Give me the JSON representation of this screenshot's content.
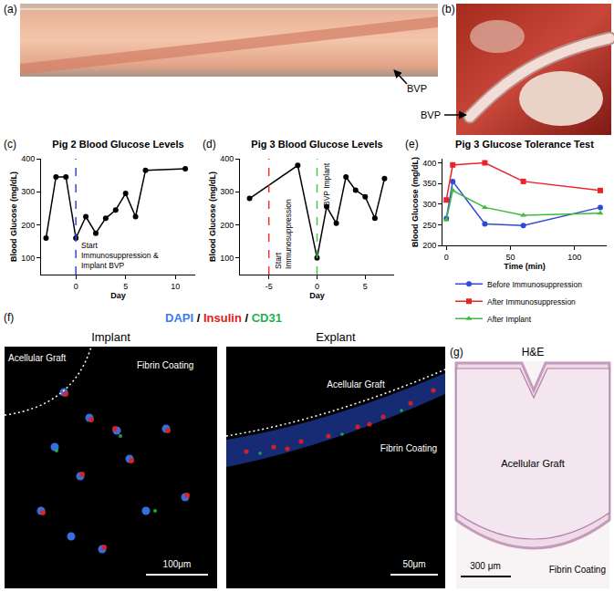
{
  "chart_data": [
    {
      "panel": "(c)",
      "type": "line",
      "title": "Pig 2 Blood Glucose Levels",
      "x_label": "Day",
      "y_label": "Blood Glucose (mg/dL)",
      "x": [
        -3,
        -2,
        -1,
        0,
        1,
        2,
        3,
        4,
        5,
        6,
        7,
        11
      ],
      "series": [
        {
          "color": "#000000",
          "marker": "circle",
          "line_style": "solid",
          "values": [
            160,
            345,
            345,
            160,
            225,
            175,
            220,
            245,
            295,
            225,
            365,
            370
          ]
        }
      ],
      "xlim": [
        -3.5,
        12
      ],
      "xticks": [
        0,
        5,
        10
      ],
      "ylim": [
        50,
        400
      ],
      "yticks": [
        100,
        200,
        300,
        400
      ],
      "grid": false,
      "vlines": [
        {
          "x": 0,
          "color": "#3344dd",
          "line_style": "dashed",
          "label_lines": [
            "Start",
            "Immunosuppression &",
            "Implant BVP"
          ]
        }
      ]
    },
    {
      "panel": "(d)",
      "type": "line",
      "title": "Pig 3 Blood Glucose Levels",
      "x_label": "Day",
      "y_label": "Blood Glucose (mg/dL)",
      "x": [
        -7,
        -2,
        0,
        1,
        2,
        3,
        4,
        5,
        6,
        7
      ],
      "series": [
        {
          "color": "#000000",
          "marker": "circle",
          "line_style": "solid",
          "values": [
            280,
            380,
            100,
            255,
            205,
            345,
            305,
            285,
            220,
            340
          ]
        }
      ],
      "xlim": [
        -8,
        8
      ],
      "xticks": [
        -5,
        0,
        5
      ],
      "ylim": [
        50,
        400
      ],
      "yticks": [
        100,
        200,
        300,
        400
      ],
      "grid": false,
      "vlines": [
        {
          "x": -5,
          "color": "#ee3333",
          "line_style": "dashed",
          "label_lines": [
            "Start",
            "Immunosuppression"
          ]
        },
        {
          "x": 0,
          "color": "#44cc44",
          "line_style": "dashed",
          "label_lines": [
            "BVP Implant"
          ]
        }
      ]
    },
    {
      "panel": "(e)",
      "type": "line",
      "title": "Pig 3 Glucose Tolerance Test",
      "x_label": "Time (min)",
      "y_label": "Blood Glucose (mg/dL)",
      "x": [
        0,
        5,
        30,
        60,
        120
      ],
      "series": [
        {
          "name": "Before Immunosuppression",
          "color": "#2e4bd8",
          "marker": "circle",
          "line_style": "solid",
          "values": [
            265,
            355,
            252,
            248,
            292
          ]
        },
        {
          "name": "After Immunosuppression",
          "color": "#e8242b",
          "marker": "square",
          "line_style": "solid",
          "values": [
            310,
            395,
            400,
            355,
            333
          ]
        },
        {
          "name": "After Implant",
          "color": "#3dbb3d",
          "marker": "triangle",
          "line_style": "solid",
          "values": [
            262,
            333,
            292,
            273,
            278
          ]
        }
      ],
      "xlim": [
        -3,
        125
      ],
      "xticks": [
        0,
        50,
        100
      ],
      "ylim": [
        200,
        410
      ],
      "yticks": [
        200,
        250,
        300,
        350,
        400
      ],
      "grid": false,
      "legend": "bottom"
    }
  ],
  "image_panels": {
    "a": {
      "label": "(a)",
      "annotation": "BVP"
    },
    "b": {
      "label": "(b)",
      "annotation": "BVP"
    },
    "f": {
      "label": "(f)",
      "stains": [
        {
          "name": "DAPI",
          "color": "#3b7bf6"
        },
        {
          "name": "Insulin",
          "color": "#e02020"
        },
        {
          "name": "CD31",
          "color": "#22b14c"
        }
      ],
      "separator": "/",
      "images": [
        {
          "title": "Implant",
          "regions": [
            "Acellular Graft",
            "Fibrin Coating"
          ],
          "scale_bar": "100μm"
        },
        {
          "title": "Explant",
          "regions": [
            "Acellular Graft",
            "Fibrin Coating"
          ],
          "scale_bar": "50μm"
        }
      ]
    },
    "g": {
      "label": "(g)",
      "title": "H&E",
      "regions": [
        "Acellular Graft",
        "Fibrin Coating"
      ],
      "scale_bar": "300 μm"
    }
  }
}
